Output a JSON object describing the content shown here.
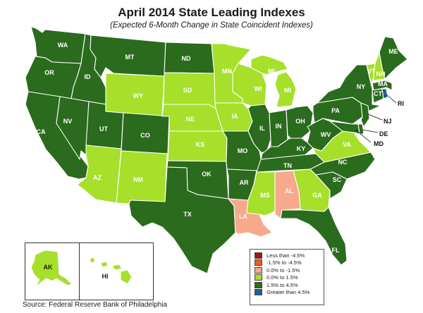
{
  "title": "April 2014 State Leading Indexes",
  "subtitle": "(Expected 6-Month Change in State Coincident Indexes)",
  "source": "Source: Federal Reserve Bank of Philadelphia",
  "colors": {
    "less_than_-4.5": "#a31515",
    "-1.5_to_-4.5": "#e2611c",
    "0.0_to_-1.5": "#f7a98c",
    "0.0_to_1.5": "#a6e02a",
    "1.5_to_4.5": "#2a6b1d",
    "greater_than_4.5": "#1f5f8c"
  },
  "legend": [
    {
      "label": "Less than -4.5%",
      "color": "#a31515"
    },
    {
      "label": "-1.5% to -4.5%",
      "color": "#e2611c"
    },
    {
      "label": "0.0% to -1.5%",
      "color": "#f7a98c"
    },
    {
      "label": "0.0% to  1.5%",
      "color": "#a6e02a"
    },
    {
      "label": "1.5% to  4.5%",
      "color": "#2a6b1d"
    },
    {
      "label": "Greater than 4.5%",
      "color": "#1f5f8c"
    }
  ],
  "states": {
    "WA": "1.5% to 4.5%",
    "OR": "1.5% to 4.5%",
    "CA": "1.5% to 4.5%",
    "ID": "1.5% to 4.5%",
    "NV": "1.5% to 4.5%",
    "MT": "1.5% to 4.5%",
    "UT": "1.5% to 4.5%",
    "AZ": "0.0% to 1.5%",
    "WY": "0.0% to 1.5%",
    "CO": "1.5% to 4.5%",
    "NM": "0.0% to 1.5%",
    "ND": "1.5% to 4.5%",
    "SD": "0.0% to 1.5%",
    "NE": "0.0% to 1.5%",
    "KS": "0.0% to 1.5%",
    "OK": "1.5% to 4.5%",
    "TX": "1.5% to 4.5%",
    "MN": "0.0% to 1.5%",
    "IA": "0.0% to 1.5%",
    "MO": "1.5% to 4.5%",
    "AR": "1.5% to 4.5%",
    "LA": "0.0% to -1.5%",
    "WI": "0.0% to 1.5%",
    "IL": "1.5% to 4.5%",
    "MI": "0.0% to 1.5%",
    "IN": "1.5% to 4.5%",
    "OH": "1.5% to 4.5%",
    "KY": "1.5% to 4.5%",
    "TN": "1.5% to 4.5%",
    "MS": "0.0% to 1.5%",
    "AL": "0.0% to -1.5%",
    "GA": "0.0% to 1.5%",
    "FL": "1.5% to 4.5%",
    "SC": "1.5% to 4.5%",
    "NC": "1.5% to 4.5%",
    "VA": "0.0% to 1.5%",
    "WV": "1.5% to 4.5%",
    "PA": "1.5% to 4.5%",
    "NY": "1.5% to 4.5%",
    "VT": "0.0% to 1.5%",
    "NH": "0.0% to 1.5%",
    "ME": "1.5% to 4.5%",
    "MA": "1.5% to 4.5%",
    "CT": "1.5% to 4.5%",
    "RI": "Greater than 4.5%",
    "NJ": "1.5% to 4.5%",
    "DE": "1.5% to 4.5%",
    "MD": "1.5% to 4.5%",
    "AK": "0.0% to 1.5%",
    "HI": "0.0% to 1.5%"
  },
  "labels": {
    "WA": "WA",
    "OR": "OR",
    "CA": "CA",
    "ID": "ID",
    "NV": "NV",
    "MT": "MT",
    "UT": "UT",
    "AZ": "AZ",
    "WY": "WY",
    "CO": "CO",
    "NM": "NM",
    "ND": "ND",
    "SD": "SD",
    "NE": "NE",
    "KS": "KS",
    "OK": "OK",
    "TX": "TX",
    "MN": "MN",
    "IA": "IA",
    "MO": "MO",
    "AR": "AR",
    "LA": "LA",
    "WI": "WI",
    "IL": "IL",
    "MI_UP": "MI",
    "MI": "MI",
    "IN": "IN",
    "OH": "OH",
    "KY": "KY",
    "TN": "TN",
    "MS": "MS",
    "AL": "AL",
    "GA": "GA",
    "FL": "FL",
    "SC": "SC",
    "NC": "NC",
    "VA": "VA",
    "WV": "WV",
    "PA": "PA",
    "NY": "NY",
    "VT": "VT",
    "NH": "NH",
    "ME": "ME",
    "MA": "MA",
    "CT": "CT",
    "RI": "RI",
    "NJ": "NJ",
    "DE": "DE",
    "MD": "MD",
    "AK": "AK",
    "HI": "HI"
  }
}
